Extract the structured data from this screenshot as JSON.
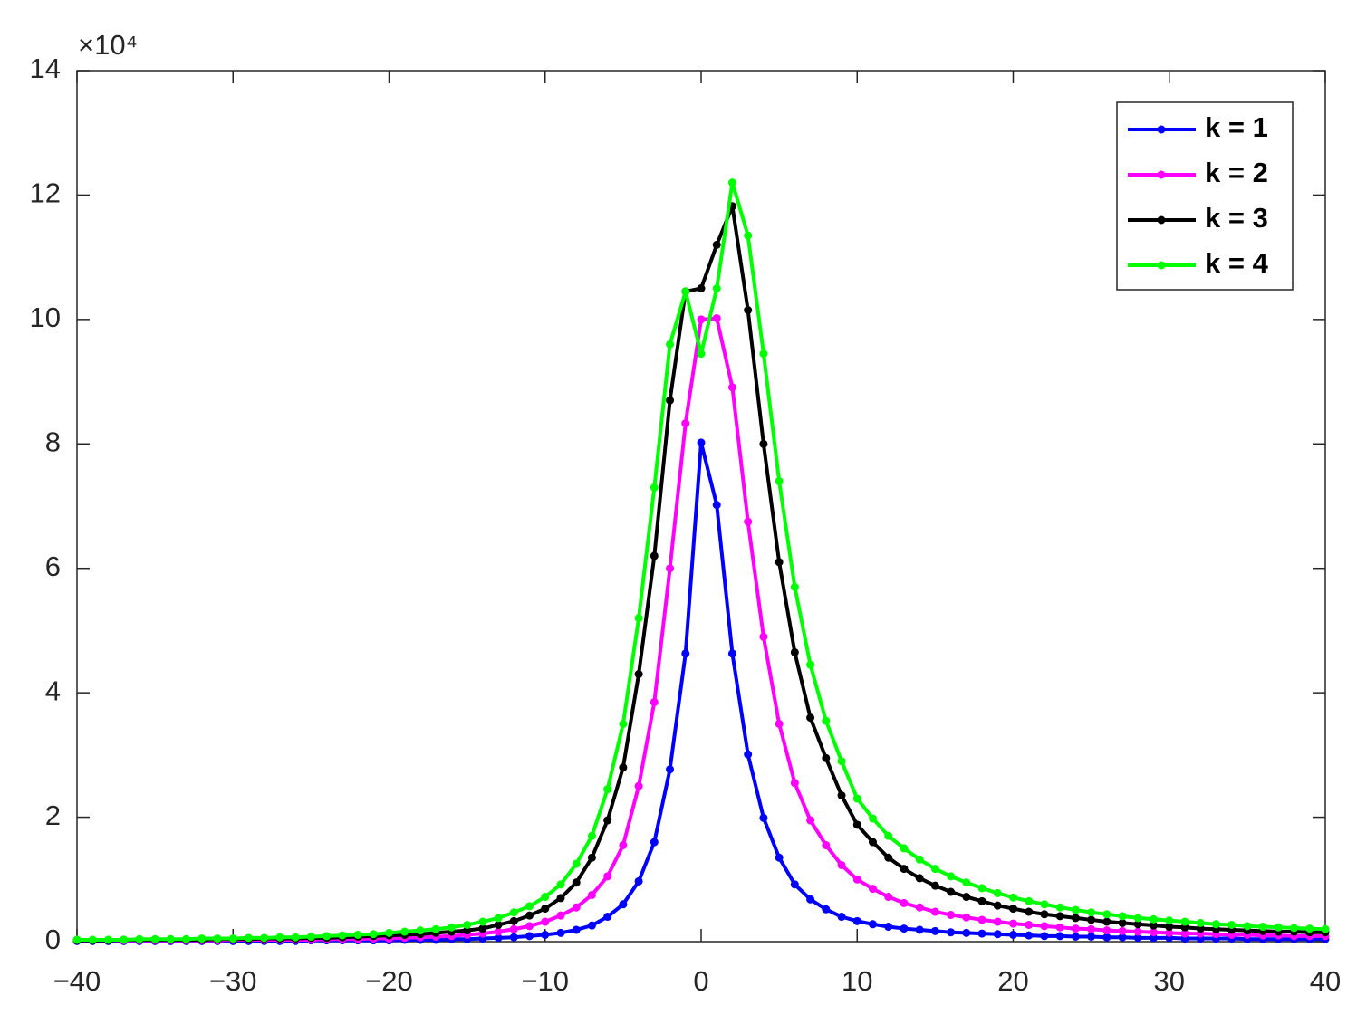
{
  "chart_data": {
    "type": "line",
    "y_exponent_label": "×10⁴",
    "x": [
      -40,
      -39,
      -38,
      -37,
      -36,
      -35,
      -34,
      -33,
      -32,
      -31,
      -30,
      -29,
      -28,
      -27,
      -26,
      -25,
      -24,
      -23,
      -22,
      -21,
      -20,
      -19,
      -18,
      -17,
      -16,
      -15,
      -14,
      -13,
      -12,
      -11,
      -10,
      -9,
      -8,
      -7,
      -6,
      -5,
      -4,
      -3,
      -2,
      -1,
      0,
      1,
      2,
      3,
      4,
      5,
      6,
      7,
      8,
      9,
      10,
      11,
      12,
      13,
      14,
      15,
      16,
      17,
      18,
      19,
      20,
      21,
      22,
      23,
      24,
      25,
      26,
      27,
      28,
      29,
      30,
      31,
      32,
      33,
      34,
      35,
      36,
      37,
      38,
      39,
      40
    ],
    "series": [
      {
        "name": "k = 1",
        "color": "#0000ff",
        "values": [
          0.01,
          0.01,
          0.01,
          0.01,
          0.01,
          0.01,
          0.01,
          0.01,
          0.01,
          0.01,
          0.01,
          0.01,
          0.01,
          0.01,
          0.01,
          0.02,
          0.02,
          0.02,
          0.02,
          0.02,
          0.02,
          0.03,
          0.03,
          0.03,
          0.04,
          0.04,
          0.05,
          0.06,
          0.07,
          0.09,
          0.11,
          0.14,
          0.19,
          0.26,
          0.4,
          0.6,
          0.97,
          1.6,
          2.77,
          4.63,
          8.02,
          7.02,
          4.63,
          3.01,
          1.99,
          1.35,
          0.92,
          0.68,
          0.52,
          0.4,
          0.33,
          0.28,
          0.24,
          0.21,
          0.19,
          0.17,
          0.15,
          0.14,
          0.13,
          0.12,
          0.11,
          0.1,
          0.09,
          0.09,
          0.08,
          0.08,
          0.07,
          0.07,
          0.06,
          0.06,
          0.06,
          0.05,
          0.05,
          0.05,
          0.05,
          0.04,
          0.04,
          0.04,
          0.04,
          0.04,
          0.04
        ]
      },
      {
        "name": "k = 2",
        "color": "#ff00ff",
        "values": [
          0.02,
          0.02,
          0.02,
          0.02,
          0.02,
          0.02,
          0.02,
          0.02,
          0.02,
          0.02,
          0.03,
          0.03,
          0.03,
          0.03,
          0.03,
          0.03,
          0.04,
          0.04,
          0.04,
          0.05,
          0.05,
          0.06,
          0.07,
          0.08,
          0.09,
          0.11,
          0.13,
          0.16,
          0.2,
          0.25,
          0.32,
          0.42,
          0.55,
          0.75,
          1.05,
          1.55,
          2.5,
          3.85,
          6.0,
          8.33,
          10.0,
          10.02,
          8.91,
          6.75,
          4.9,
          3.5,
          2.55,
          1.95,
          1.55,
          1.23,
          1.0,
          0.85,
          0.72,
          0.62,
          0.55,
          0.48,
          0.43,
          0.39,
          0.35,
          0.32,
          0.29,
          0.27,
          0.25,
          0.23,
          0.21,
          0.2,
          0.18,
          0.17,
          0.16,
          0.15,
          0.14,
          0.13,
          0.13,
          0.12,
          0.11,
          0.11,
          0.1,
          0.1,
          0.09,
          0.09,
          0.09
        ]
      },
      {
        "name": "k = 3",
        "color": "#000000",
        "values": [
          0.02,
          0.02,
          0.02,
          0.03,
          0.03,
          0.03,
          0.03,
          0.03,
          0.03,
          0.04,
          0.04,
          0.04,
          0.05,
          0.05,
          0.05,
          0.06,
          0.06,
          0.07,
          0.08,
          0.09,
          0.1,
          0.11,
          0.12,
          0.14,
          0.16,
          0.18,
          0.21,
          0.27,
          0.33,
          0.42,
          0.53,
          0.7,
          0.95,
          1.35,
          1.95,
          2.8,
          4.3,
          6.2,
          8.7,
          10.45,
          10.5,
          11.2,
          11.82,
          10.15,
          8.0,
          6.1,
          4.65,
          3.6,
          2.95,
          2.35,
          1.88,
          1.6,
          1.35,
          1.17,
          1.02,
          0.9,
          0.8,
          0.72,
          0.65,
          0.58,
          0.53,
          0.48,
          0.44,
          0.41,
          0.38,
          0.35,
          0.32,
          0.3,
          0.28,
          0.26,
          0.24,
          0.23,
          0.21,
          0.2,
          0.19,
          0.18,
          0.17,
          0.16,
          0.16,
          0.15,
          0.15
        ]
      },
      {
        "name": "k = 4",
        "color": "#00ff00",
        "values": [
          0.03,
          0.03,
          0.03,
          0.03,
          0.04,
          0.04,
          0.04,
          0.04,
          0.05,
          0.05,
          0.05,
          0.06,
          0.06,
          0.07,
          0.07,
          0.08,
          0.09,
          0.1,
          0.11,
          0.12,
          0.14,
          0.16,
          0.18,
          0.2,
          0.23,
          0.27,
          0.32,
          0.38,
          0.47,
          0.57,
          0.72,
          0.92,
          1.25,
          1.7,
          2.45,
          3.5,
          5.2,
          7.3,
          9.6,
          10.45,
          9.45,
          10.5,
          12.2,
          11.35,
          9.45,
          7.4,
          5.7,
          4.45,
          3.55,
          2.9,
          2.3,
          1.98,
          1.7,
          1.5,
          1.32,
          1.17,
          1.05,
          0.95,
          0.86,
          0.78,
          0.71,
          0.65,
          0.6,
          0.55,
          0.51,
          0.47,
          0.44,
          0.41,
          0.38,
          0.36,
          0.34,
          0.32,
          0.3,
          0.28,
          0.27,
          0.25,
          0.24,
          0.23,
          0.22,
          0.21,
          0.2
        ]
      }
    ],
    "xlim": [
      -40,
      40
    ],
    "xticks": [
      {
        "value": -40,
        "label": "−40"
      },
      {
        "value": -30,
        "label": "−30"
      },
      {
        "value": -20,
        "label": "−20"
      },
      {
        "value": -10,
        "label": "−10"
      },
      0,
      10,
      20,
      30,
      40
    ],
    "ylim": [
      0,
      14
    ],
    "yticks": [
      0,
      2,
      4,
      6,
      8,
      10,
      12,
      14
    ],
    "markers": true,
    "grid": false,
    "legend": "northeast"
  }
}
